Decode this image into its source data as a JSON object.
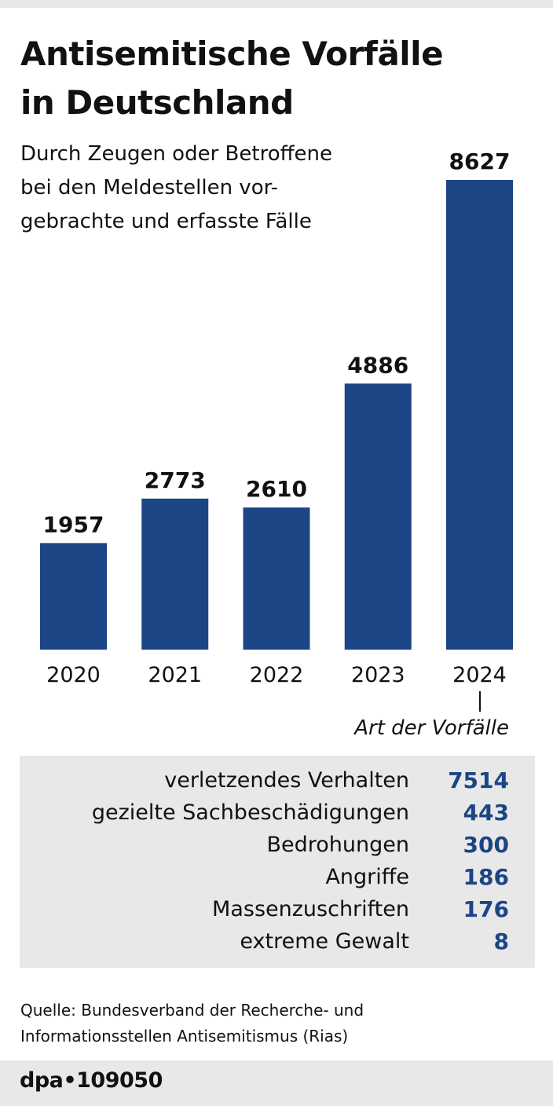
{
  "title_line1": "Antisemitische Vorfälle",
  "title_line2": "in Deutschland",
  "subtitle": "Durch Zeugen oder Betroffene bei den Meldestellen vor-gebrachte und erfasste Fälle",
  "subtitle_lines": [
    "Durch Zeugen oder Betroffene",
    "bei den Meldestellen vor-",
    "gebrachte und erfasste Fälle"
  ],
  "chart_data": {
    "type": "bar",
    "title": "Antisemitische Vorfälle in Deutschland",
    "categories": [
      "2020",
      "2021",
      "2022",
      "2023",
      "2024"
    ],
    "values": [
      1957,
      2773,
      2610,
      4886,
      8627
    ],
    "xlabel": "",
    "ylabel": "",
    "ylim": [
      0,
      8627
    ],
    "bar_color": "#1b4585",
    "breakdown_title": "Art der Vorfälle",
    "breakdown_year": "2024",
    "breakdown": [
      {
        "label": "verletzendes Verhalten",
        "value": "7514"
      },
      {
        "label": "gezielte Sachbeschädigungen",
        "value": "443"
      },
      {
        "label": "Bedrohungen",
        "value": "300"
      },
      {
        "label": "Angriffe",
        "value": "186"
      },
      {
        "label": "Massenzuschriften",
        "value": "176"
      },
      {
        "label": "extreme Gewalt",
        "value": "8"
      }
    ]
  },
  "source_lines": [
    "Quelle: Bundesverband der Recherche- und",
    "Informationsstellen Antisemitismus (Rias)"
  ],
  "credit": "dpa•109050"
}
